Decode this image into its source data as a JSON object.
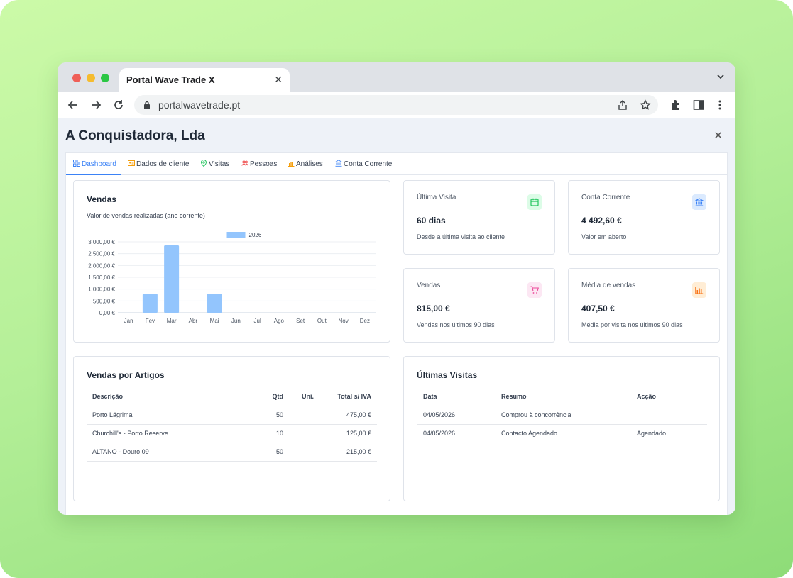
{
  "browser": {
    "tab_title": "Portal Wave Trade X",
    "url": "portalwavetrade.pt"
  },
  "page": {
    "title": "A Conquistadora, Lda",
    "tabs": [
      {
        "label": "Dashboard",
        "icon": "grid-icon",
        "active": true
      },
      {
        "label": "Dados de cliente",
        "icon": "id-card-icon"
      },
      {
        "label": "Visitas",
        "icon": "map-pin-icon"
      },
      {
        "label": "Pessoas",
        "icon": "users-icon"
      },
      {
        "label": "Análises",
        "icon": "bar-chart-icon"
      },
      {
        "label": "Conta Corrente",
        "icon": "bank-icon"
      }
    ]
  },
  "sales_chart": {
    "title": "Vendas",
    "subtitle": "Valor de vendas realizadas (ano corrente)"
  },
  "chart_data": {
    "type": "bar",
    "categories": [
      "Jan",
      "Fev",
      "Mar",
      "Abr",
      "Mai",
      "Jun",
      "Jul",
      "Ago",
      "Set",
      "Out",
      "Nov",
      "Dez"
    ],
    "series": [
      {
        "name": "2026",
        "values": [
          0,
          800,
          2850,
          0,
          800,
          0,
          0,
          0,
          0,
          0,
          0,
          0
        ],
        "color": "#93c5fd"
      }
    ],
    "y_ticks": [
      "3 000,00 €",
      "2 500,00 €",
      "2 000,00 €",
      "1 500,00 €",
      "1 000,00 €",
      "500,00 €",
      "0,00 €"
    ],
    "ylim": [
      0,
      3000
    ],
    "grid": true,
    "legend": "top-center"
  },
  "stats": [
    {
      "label": "Última Visita",
      "value": "60 dias",
      "desc": "Desde a última visita ao cliente",
      "icon": "calendar-icon",
      "color": "#22c55e",
      "bg": "#dcfce7"
    },
    {
      "label": "Conta Corrente",
      "value": "4 492,60 €",
      "desc": "Valor em aberto",
      "icon": "bank-icon",
      "color": "#3b82f6",
      "bg": "#dbeafe"
    },
    {
      "label": "Vendas",
      "value": "815,00 €",
      "desc": "Vendas nos últimos 90 dias",
      "icon": "cart-icon",
      "color": "#ec4899",
      "bg": "#fce7f3"
    },
    {
      "label": "Média de vendas",
      "value": "407,50 €",
      "desc": "Média por visita nos últimos 90 dias",
      "icon": "bar-chart-icon",
      "color": "#f97316",
      "bg": "#ffedd5"
    }
  ],
  "articles": {
    "title": "Vendas por Artigos",
    "columns": [
      "Descrição",
      "Qtd",
      "Uni.",
      "Total s/ IVA"
    ],
    "rows": [
      [
        "Porto Lágrima",
        "50",
        "",
        "475,00 €"
      ],
      [
        "Churchill's - Porto Reserve",
        "10",
        "",
        "125,00 €"
      ],
      [
        "ALTANO - Douro 09",
        "50",
        "",
        "215,00 €"
      ]
    ]
  },
  "visits": {
    "title": "Últimas Visitas",
    "columns": [
      "Data",
      "Resumo",
      "Acção"
    ],
    "rows": [
      [
        "04/05/2026",
        "Comprou à concorrência",
        ""
      ],
      [
        "04/05/2026",
        "Contacto Agendado",
        "Agendado"
      ]
    ]
  }
}
